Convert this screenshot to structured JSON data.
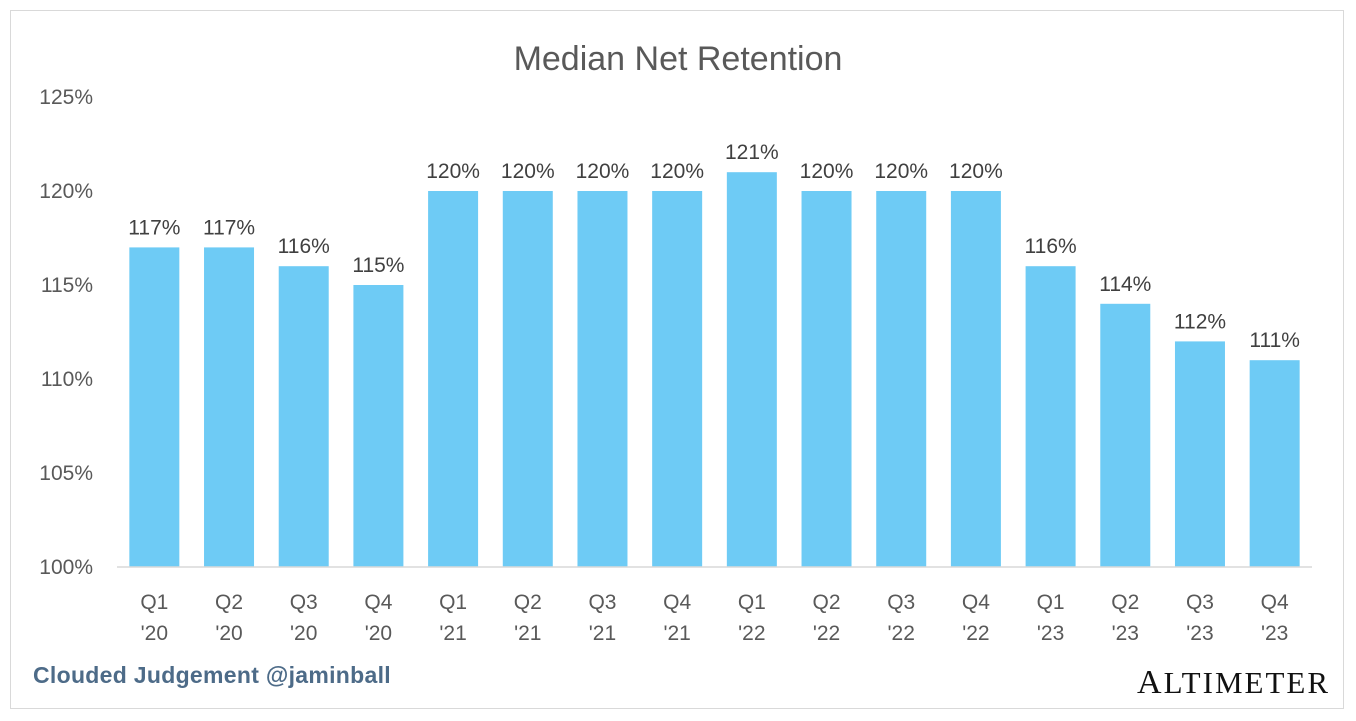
{
  "chart_data": {
    "type": "bar",
    "title": "Median Net Retention",
    "categories": [
      [
        "Q1",
        "'20"
      ],
      [
        "Q2",
        "'20"
      ],
      [
        "Q3",
        "'20"
      ],
      [
        "Q4",
        "'20"
      ],
      [
        "Q1",
        "'21"
      ],
      [
        "Q2",
        "'21"
      ],
      [
        "Q3",
        "'21"
      ],
      [
        "Q4",
        "'21"
      ],
      [
        "Q1",
        "'22"
      ],
      [
        "Q2",
        "'22"
      ],
      [
        "Q3",
        "'22"
      ],
      [
        "Q4",
        "'22"
      ],
      [
        "Q1",
        "'23"
      ],
      [
        "Q2",
        "'23"
      ],
      [
        "Q3",
        "'23"
      ],
      [
        "Q4",
        "'23"
      ]
    ],
    "values": [
      117,
      117,
      116,
      115,
      120,
      120,
      120,
      120,
      121,
      120,
      120,
      120,
      116,
      114,
      112,
      111
    ],
    "value_labels": [
      "117%",
      "117%",
      "116%",
      "115%",
      "120%",
      "120%",
      "120%",
      "120%",
      "121%",
      "120%",
      "120%",
      "120%",
      "116%",
      "114%",
      "112%",
      "111%"
    ],
    "ylim": [
      100,
      125
    ],
    "yticks": [
      100,
      105,
      110,
      115,
      120,
      125
    ],
    "ytick_labels": [
      "100%",
      "105%",
      "110%",
      "115%",
      "120%",
      "125%"
    ],
    "xlabel": "",
    "ylabel": "",
    "grid": false,
    "bar_color": "#6ecbf5"
  },
  "footer": {
    "attribution": "Clouded Judgement @jaminball",
    "brand_first": "A",
    "brand_rest": "LTIMETER"
  },
  "colors": {
    "attribution": "#4d6b88",
    "text": "#404040",
    "axis": "#d9d9d9"
  }
}
